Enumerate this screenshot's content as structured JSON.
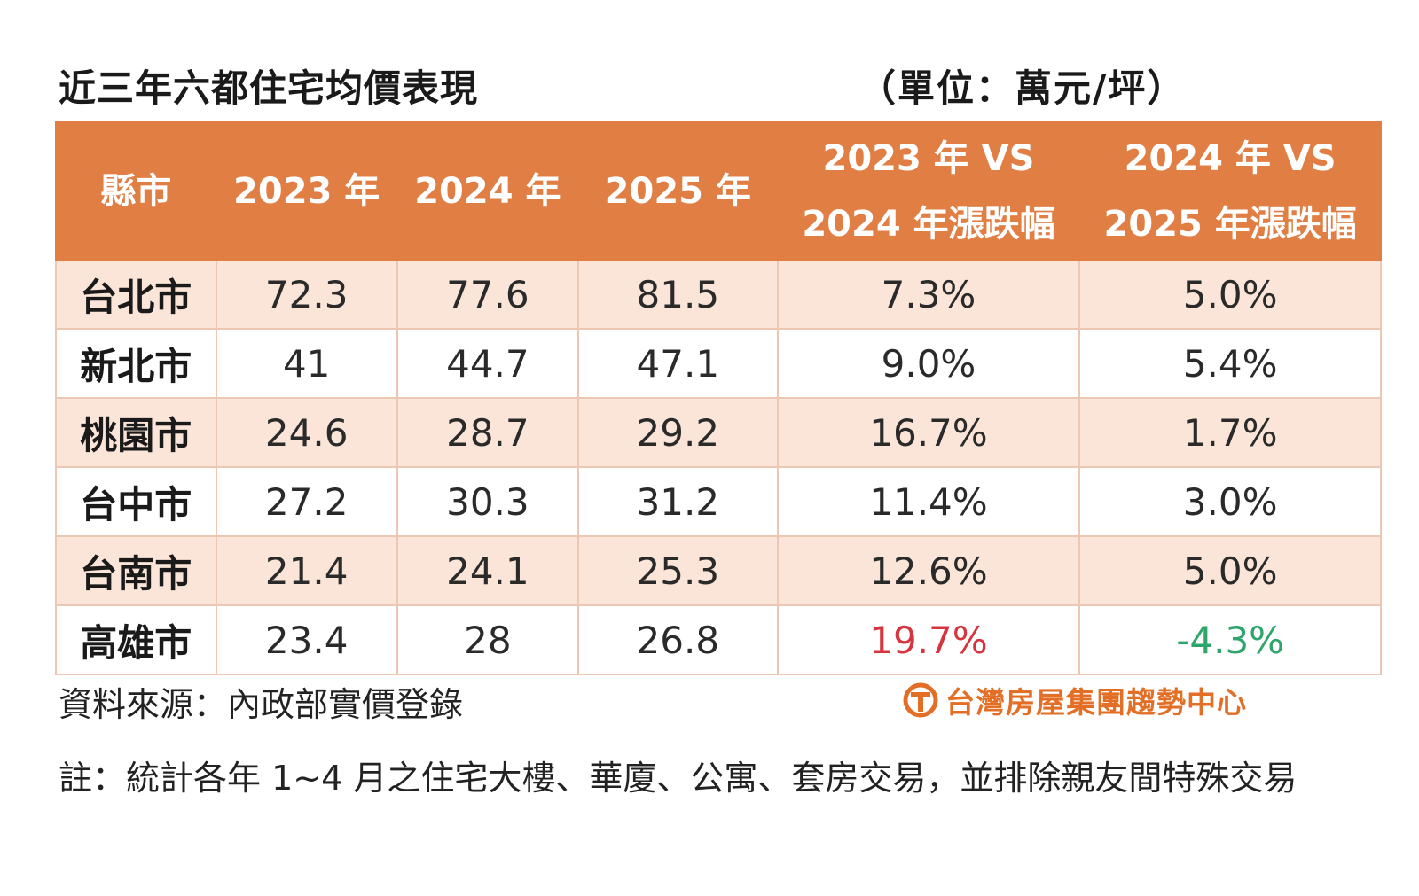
{
  "title": "近三年六都住宅均價表現",
  "unit": "（單位：萬元/坪）",
  "table": {
    "headers": [
      "縣市",
      "2023 年",
      "2024 年",
      "2025 年",
      "2023 年 VS\n2024 年漲跌幅",
      "2024 年 VS\n2025 年漲跌幅"
    ],
    "rows": [
      [
        "台北市",
        "72.3",
        "77.6",
        "81.5",
        "7.3%",
        "5.0%"
      ],
      [
        "新北市",
        "41",
        "44.7",
        "47.1",
        "9.0%",
        "5.4%"
      ],
      [
        "桃園市",
        "24.6",
        "28.7",
        "29.2",
        "16.7%",
        "1.7%"
      ],
      [
        "台中市",
        "27.2",
        "30.3",
        "31.2",
        "11.4%",
        "3.0%"
      ],
      [
        "台南市",
        "21.4",
        "24.1",
        "25.3",
        "12.6%",
        "5.0%"
      ],
      [
        "高雄市",
        "23.4",
        "28",
        "26.8",
        "19.7%",
        "-4.3%"
      ]
    ]
  },
  "highlight_colors": {
    "max_increase": "#d6343f",
    "decrease": "#2ea56a"
  },
  "source": "資料來源：內政部實價登錄",
  "logo_text": "台灣房屋集團趨勢中心",
  "note": "註：統計各年 1~4 月之住宅大樓、華廈、公寓、套房交易，並排除親友間特殊交易",
  "colors": {
    "header_bg": "#e07e44",
    "row_stripe": "#fbe5d9",
    "logo": "#e36f26"
  }
}
